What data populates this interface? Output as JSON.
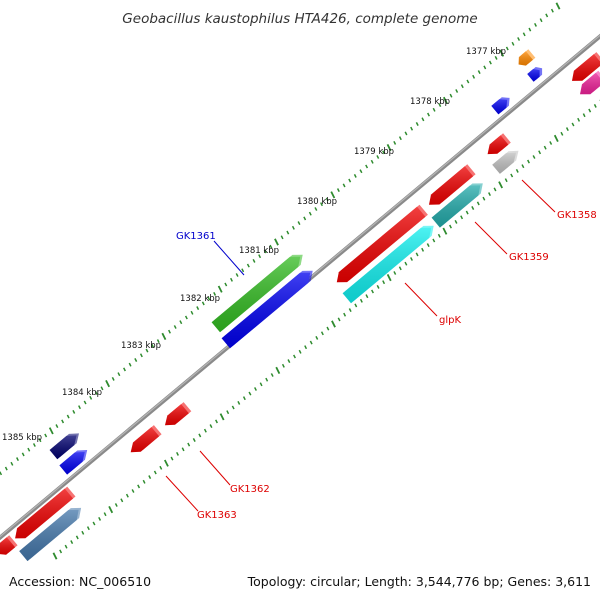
{
  "title": "Geobacillus kaustophilus HTA426, complete genome",
  "footer": {
    "accession": "Accession: NC_006510",
    "summary": "Topology: circular; Length: 3,544,776 bp; Genes: 3,611"
  },
  "ruler_labels": [
    "1377 kbp",
    "1378 kbp",
    "1379 kbp",
    "1380 kbp",
    "1381 kbp",
    "1382 kbp",
    "1383 kbp",
    "1384 kbp",
    "1385 kbp"
  ],
  "gene_labels": [
    {
      "text": "GK1358",
      "color": "#dd0000"
    },
    {
      "text": "GK1359",
      "color": "#dd0000"
    },
    {
      "text": "glpK",
      "color": "#dd0000"
    },
    {
      "text": "GK1361",
      "color": "#0000cc"
    },
    {
      "text": "GK1362",
      "color": "#dd0000"
    },
    {
      "text": "GK1363",
      "color": "#dd0000"
    }
  ],
  "colors": {
    "backbone": "#8a8a8a",
    "ticks": "#2e8b2e",
    "red": "#ee0000",
    "blue": "#0000ee",
    "navy": "#00006e",
    "green": "#33bb22",
    "cyan": "#11eeee",
    "teal": "#22aaaa",
    "steelblue": "#4477aa",
    "orange": "#ff8800",
    "gray": "#c0c0c0",
    "pink": "#ee2299"
  }
}
